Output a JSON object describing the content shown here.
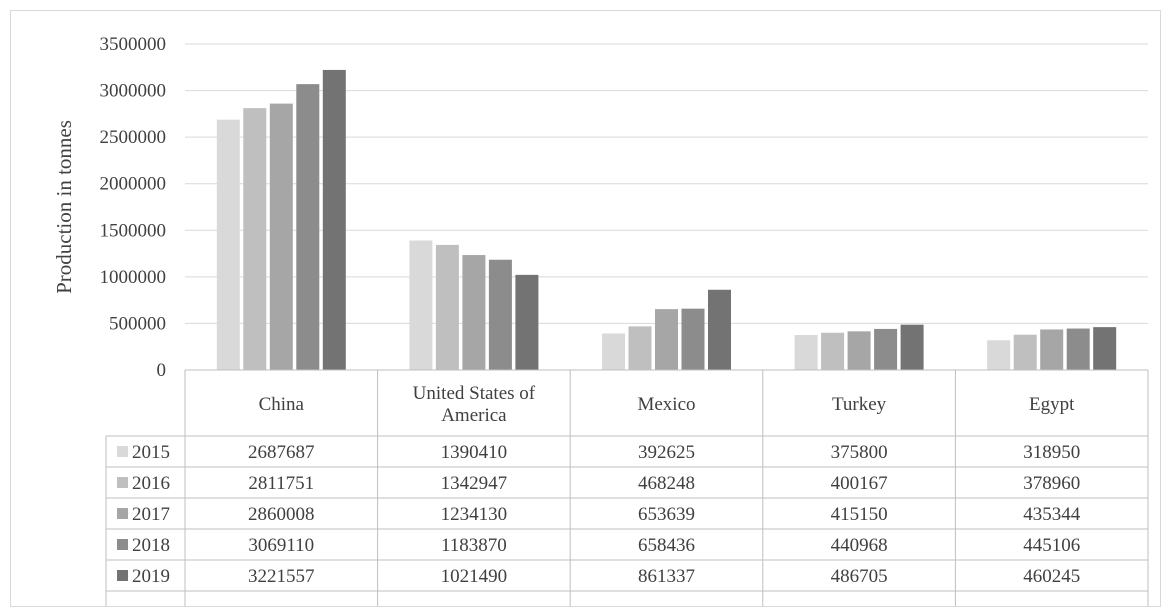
{
  "chart_data": {
    "type": "bar",
    "ylabel": "Production in tonnes",
    "ylim": [
      0,
      3500000
    ],
    "yticks": [
      "0",
      "500000",
      "1000000",
      "1500000",
      "2000000",
      "2500000",
      "3000000",
      "3500000"
    ],
    "grid": true,
    "legend": "data-table",
    "categories": [
      [
        "China"
      ],
      [
        "United States of",
        "America"
      ],
      [
        "Mexico"
      ],
      [
        "Turkey"
      ],
      [
        "Egypt"
      ]
    ],
    "series": [
      {
        "name": "2015",
        "color": "#d9d9d9",
        "values": [
          2687687,
          1390410,
          392625,
          375800,
          318950
        ],
        "labels": [
          "2687687",
          "1390410",
          "392625",
          "375800",
          "318950"
        ]
      },
      {
        "name": "2016",
        "color": "#bfbfbf",
        "values": [
          2811751,
          1342947,
          468248,
          400167,
          378960
        ],
        "labels": [
          "2811751",
          "1342947",
          "468248",
          "400167",
          "378960"
        ]
      },
      {
        "name": "2017",
        "color": "#a6a6a6",
        "values": [
          2860008,
          1234130,
          653639,
          415150,
          435344
        ],
        "labels": [
          "2860008",
          "1234130",
          "653639",
          "415150",
          "435344"
        ]
      },
      {
        "name": "2018",
        "color": "#8c8c8c",
        "values": [
          3069110,
          1183870,
          658436,
          440968,
          445106
        ],
        "labels": [
          "3069110",
          "1183870",
          "658436",
          "440968",
          "445106"
        ]
      },
      {
        "name": "2019",
        "color": "#737373",
        "values": [
          3221557,
          1021490,
          861337,
          486705,
          460245
        ],
        "labels": [
          "3221557",
          "1021490",
          "861337",
          "486705",
          "460245"
        ]
      }
    ]
  }
}
